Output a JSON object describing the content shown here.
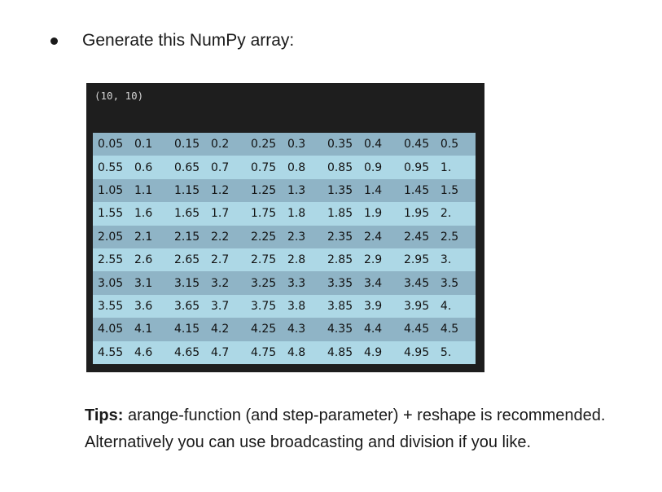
{
  "instruction": {
    "text": "Generate this NumPy array:"
  },
  "output": {
    "shape": "(10, 10)",
    "rows": [
      [
        "0.05",
        "0.1",
        "0.15",
        "0.2",
        "0.25",
        "0.3",
        "0.35",
        "0.4",
        "0.45",
        "0.5"
      ],
      [
        "0.55",
        "0.6",
        "0.65",
        "0.7",
        "0.75",
        "0.8",
        "0.85",
        "0.9",
        "0.95",
        "1."
      ],
      [
        "1.05",
        "1.1",
        "1.15",
        "1.2",
        "1.25",
        "1.3",
        "1.35",
        "1.4",
        "1.45",
        "1.5"
      ],
      [
        "1.55",
        "1.6",
        "1.65",
        "1.7",
        "1.75",
        "1.8",
        "1.85",
        "1.9",
        "1.95",
        "2."
      ],
      [
        "2.05",
        "2.1",
        "2.15",
        "2.2",
        "2.25",
        "2.3",
        "2.35",
        "2.4",
        "2.45",
        "2.5"
      ],
      [
        "2.55",
        "2.6",
        "2.65",
        "2.7",
        "2.75",
        "2.8",
        "2.85",
        "2.9",
        "2.95",
        "3."
      ],
      [
        "3.05",
        "3.1",
        "3.15",
        "3.2",
        "3.25",
        "3.3",
        "3.35",
        "3.4",
        "3.45",
        "3.5"
      ],
      [
        "3.55",
        "3.6",
        "3.65",
        "3.7",
        "3.75",
        "3.8",
        "3.85",
        "3.9",
        "3.95",
        "4."
      ],
      [
        "4.05",
        "4.1",
        "4.15",
        "4.2",
        "4.25",
        "4.3",
        "4.35",
        "4.4",
        "4.45",
        "4.5"
      ],
      [
        "4.55",
        "4.6",
        "4.65",
        "4.7",
        "4.75",
        "4.8",
        "4.85",
        "4.9",
        "4.95",
        "5."
      ]
    ],
    "colors": {
      "background": "#1e1e1e",
      "row_odd": "#8fb4c6",
      "row_even": "#add8e6"
    }
  },
  "tips": {
    "label": "Tips:",
    "text": " arange-function (and step-parameter) + reshape is recommended. Alternatively you can use broadcasting and division if you like."
  }
}
